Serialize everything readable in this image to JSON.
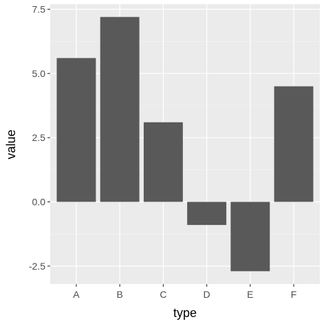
{
  "chart_data": {
    "type": "bar",
    "xlabel": "type",
    "ylabel": "value",
    "categories": [
      "A",
      "B",
      "C",
      "D",
      "E",
      "F"
    ],
    "values": [
      5.6,
      7.2,
      3.1,
      -0.9,
      -2.7,
      4.5
    ],
    "ylim": [
      -3.2,
      7.7
    ],
    "yticks": [
      -2.5,
      0.0,
      2.5,
      5.0,
      7.5
    ],
    "ytick_labels": [
      "-2.5",
      "0.0",
      "2.5",
      "5.0",
      "7.5"
    ],
    "grid": true,
    "legend": "none",
    "colors": {
      "bar": "#595959",
      "panel_background": "#ebebeb",
      "grid_major": "#ffffff",
      "grid_minor": "#f5f5f5",
      "tick_label": "#4d4d4d",
      "tick_mark": "#333333"
    }
  }
}
